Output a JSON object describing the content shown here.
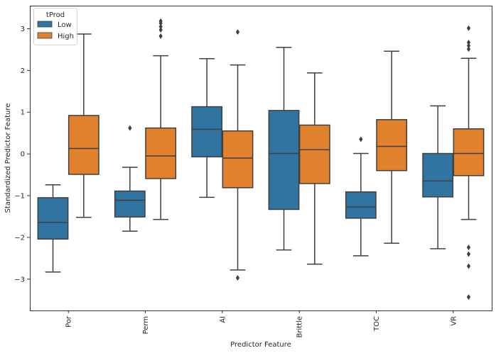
{
  "chart_data": {
    "type": "boxplot",
    "title": "",
    "xlabel": "Predictor Feature",
    "ylabel": "Standardized Predictor Feature",
    "ylim": [
      -3.75,
      3.55
    ],
    "yticks": [
      -3,
      -2,
      -1,
      0,
      1,
      2,
      3
    ],
    "ytick_labels": [
      "−3",
      "−2",
      "−1",
      "0",
      "1",
      "2",
      "3"
    ],
    "categories": [
      "Por",
      "Perm",
      "AI",
      "Brittle",
      "TOC",
      "VR"
    ],
    "grid": false,
    "legend": {
      "title": "tProd",
      "placement": "top-left",
      "entries": [
        "Low",
        "High"
      ]
    },
    "series": [
      {
        "name": "Low",
        "color": "#3274a1",
        "boxes": [
          {
            "whisker_low": -2.83,
            "q1": -2.04,
            "median": -1.64,
            "q3": -1.05,
            "whisker_high": -0.74,
            "outliers": []
          },
          {
            "whisker_low": -1.85,
            "q1": -1.51,
            "median": -1.11,
            "q3": -0.89,
            "whisker_high": -0.32,
            "outliers": [
              0.62
            ]
          },
          {
            "whisker_low": -1.04,
            "q1": -0.07,
            "median": 0.59,
            "q3": 1.13,
            "whisker_high": 2.28,
            "outliers": []
          },
          {
            "whisker_low": -2.3,
            "q1": -1.33,
            "median": 0.01,
            "q3": 1.04,
            "whisker_high": 2.55,
            "outliers": []
          },
          {
            "whisker_low": -2.44,
            "q1": -1.54,
            "median": -1.27,
            "q3": -0.91,
            "whisker_high": 0.01,
            "outliers": [
              0.35
            ]
          },
          {
            "whisker_low": -2.27,
            "q1": -1.03,
            "median": -0.65,
            "q3": 0.01,
            "whisker_high": 1.15,
            "outliers": []
          }
        ]
      },
      {
        "name": "High",
        "color": "#e1812c",
        "boxes": [
          {
            "whisker_low": -1.52,
            "q1": -0.49,
            "median": 0.13,
            "q3": 0.92,
            "whisker_high": 2.87,
            "outliers": []
          },
          {
            "whisker_low": -1.57,
            "q1": -0.59,
            "median": -0.05,
            "q3": 0.62,
            "whisker_high": 2.35,
            "outliers": [
              2.82,
              2.97,
              3.05,
              3.13,
              3.18
            ]
          },
          {
            "whisker_low": -2.78,
            "q1": -0.81,
            "median": -0.1,
            "q3": 0.55,
            "whisker_high": 2.13,
            "outliers": [
              2.92,
              -2.97
            ]
          },
          {
            "whisker_low": -2.64,
            "q1": -0.71,
            "median": 0.1,
            "q3": 0.69,
            "whisker_high": 1.94,
            "outliers": []
          },
          {
            "whisker_low": -2.14,
            "q1": -0.4,
            "median": 0.18,
            "q3": 0.82,
            "whisker_high": 2.46,
            "outliers": []
          },
          {
            "whisker_low": -1.57,
            "q1": -0.52,
            "median": 0.01,
            "q3": 0.6,
            "whisker_high": 2.29,
            "outliers": [
              2.51,
              2.59,
              2.67,
              3.01,
              -2.24,
              -2.4,
              -2.69,
              -3.43
            ]
          }
        ]
      }
    ]
  }
}
